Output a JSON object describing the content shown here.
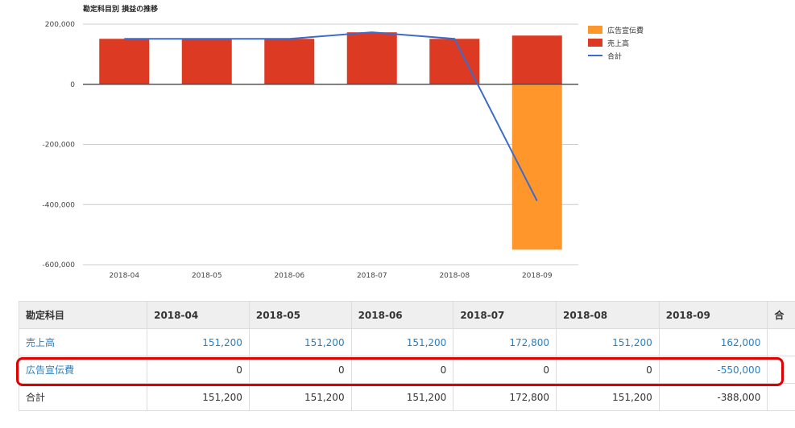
{
  "chart_data": {
    "type": "bar",
    "title": "勘定科目別 損益の推移",
    "categories": [
      "2018-04",
      "2018-05",
      "2018-06",
      "2018-07",
      "2018-08",
      "2018-09"
    ],
    "series": [
      {
        "name": "広告宣伝費",
        "type": "bar",
        "color": "#ff962c",
        "values": [
          0,
          0,
          0,
          0,
          0,
          -550000
        ]
      },
      {
        "name": "売上高",
        "type": "bar",
        "color": "#dc3a22",
        "values": [
          151200,
          151200,
          151200,
          172800,
          151200,
          162000
        ]
      },
      {
        "name": "合計",
        "type": "line",
        "color": "#3c6bcc",
        "values": [
          151200,
          151200,
          151200,
          172800,
          151200,
          -388000
        ]
      }
    ],
    "ylim": [
      -600000,
      200000
    ],
    "yticks": [
      200000,
      0,
      -200000,
      -400000,
      -600000
    ],
    "ytick_labels": [
      "200,000",
      "0",
      "-200,000",
      "-400,000",
      "-600,000"
    ],
    "legend_position": "right",
    "grid": true
  },
  "table": {
    "headers": [
      "勘定科目",
      "2018-04",
      "2018-05",
      "2018-06",
      "2018-07",
      "2018-08",
      "2018-09",
      "合"
    ],
    "rows": [
      {
        "label": "売上高",
        "link": true,
        "cells": [
          "151,200",
          "151,200",
          "151,200",
          "172,800",
          "151,200",
          "162,000"
        ]
      },
      {
        "label": "広告宣伝費",
        "link": true,
        "cells": [
          "0",
          "0",
          "0",
          "0",
          "0",
          "-550,000"
        ]
      },
      {
        "label": "合計",
        "link": false,
        "cells": [
          "151,200",
          "151,200",
          "151,200",
          "172,800",
          "151,200",
          "-388,000"
        ]
      }
    ]
  }
}
